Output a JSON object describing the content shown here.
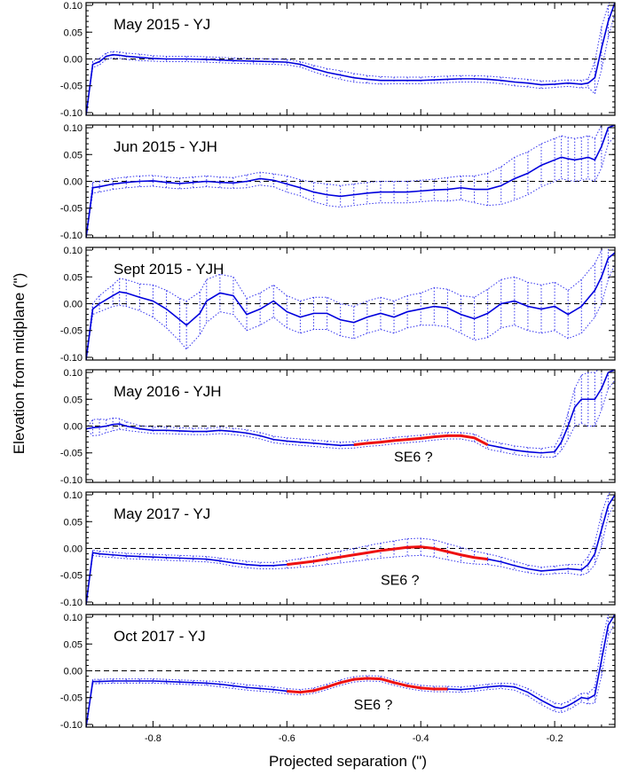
{
  "chart_data": {
    "type": "line",
    "xlabel": "Projected separation (\")",
    "ylabel": "Elevation from midplane (\")",
    "xlim": [
      -0.9,
      -0.11
    ],
    "ylim": [
      -0.105,
      0.105
    ],
    "xticks": [
      -0.8,
      -0.6,
      -0.4,
      -0.2
    ],
    "xtick_labels": [
      "-0.8",
      "-0.6",
      "-0.4",
      "-0.2"
    ],
    "yticks": [
      0.1,
      0.05,
      0.0,
      -0.05,
      -0.1
    ],
    "ytick_labels": [
      "0.10",
      "0.05",
      "0.00",
      "-0.05",
      "-0.10"
    ],
    "zero_line": "dashed",
    "colors": {
      "profile": "#0000dd",
      "highlight": "#ee1111",
      "errorbars": "#3333ee",
      "zero": "#000000"
    },
    "panels": [
      {
        "title": "May 2015 - YJ",
        "x": [
          -0.9,
          -0.89,
          -0.88,
          -0.87,
          -0.86,
          -0.85,
          -0.84,
          -0.82,
          -0.8,
          -0.78,
          -0.75,
          -0.72,
          -0.7,
          -0.68,
          -0.65,
          -0.62,
          -0.6,
          -0.58,
          -0.56,
          -0.54,
          -0.52,
          -0.5,
          -0.48,
          -0.46,
          -0.44,
          -0.42,
          -0.4,
          -0.38,
          -0.36,
          -0.34,
          -0.32,
          -0.3,
          -0.28,
          -0.26,
          -0.24,
          -0.22,
          -0.2,
          -0.18,
          -0.16,
          -0.15,
          -0.14,
          -0.13,
          -0.12,
          -0.11
        ],
        "y": [
          -0.105,
          -0.01,
          -0.005,
          0.005,
          0.008,
          0.007,
          0.005,
          0.003,
          0.001,
          0.0,
          0.0,
          -0.001,
          -0.002,
          -0.003,
          -0.004,
          -0.005,
          -0.006,
          -0.01,
          -0.018,
          -0.025,
          -0.03,
          -0.035,
          -0.038,
          -0.04,
          -0.04,
          -0.04,
          -0.04,
          -0.039,
          -0.038,
          -0.037,
          -0.037,
          -0.038,
          -0.04,
          -0.043,
          -0.045,
          -0.048,
          -0.047,
          -0.045,
          -0.047,
          -0.045,
          -0.035,
          0.02,
          0.07,
          0.105
        ],
        "err": [
          0,
          0.006,
          0.006,
          0.006,
          0.006,
          0.006,
          0.006,
          0.006,
          0.005,
          0.005,
          0.005,
          0.005,
          0.005,
          0.005,
          0.005,
          0.005,
          0.005,
          0.005,
          0.006,
          0.007,
          0.008,
          0.008,
          0.007,
          0.007,
          0.006,
          0.006,
          0.006,
          0.006,
          0.006,
          0.006,
          0.006,
          0.006,
          0.006,
          0.007,
          0.007,
          0.007,
          0.006,
          0.006,
          0.007,
          0.008,
          0.03,
          0.04,
          0.03,
          0.02
        ],
        "highlight_x": [],
        "annotation": ""
      },
      {
        "title": "Jun 2015 - YJH",
        "x": [
          -0.9,
          -0.89,
          -0.88,
          -0.86,
          -0.84,
          -0.82,
          -0.8,
          -0.78,
          -0.76,
          -0.74,
          -0.72,
          -0.7,
          -0.68,
          -0.66,
          -0.64,
          -0.62,
          -0.6,
          -0.58,
          -0.56,
          -0.54,
          -0.52,
          -0.5,
          -0.48,
          -0.46,
          -0.44,
          -0.42,
          -0.4,
          -0.38,
          -0.36,
          -0.34,
          -0.32,
          -0.3,
          -0.28,
          -0.26,
          -0.24,
          -0.22,
          -0.2,
          -0.19,
          -0.18,
          -0.17,
          -0.16,
          -0.15,
          -0.14,
          -0.13,
          -0.12,
          -0.11
        ],
        "y": [
          -0.105,
          -0.012,
          -0.01,
          -0.005,
          -0.002,
          0.0,
          0.001,
          -0.002,
          -0.004,
          -0.002,
          0.0,
          -0.002,
          -0.003,
          0.0,
          0.005,
          0.002,
          -0.005,
          -0.012,
          -0.02,
          -0.025,
          -0.028,
          -0.025,
          -0.022,
          -0.02,
          -0.02,
          -0.02,
          -0.018,
          -0.016,
          -0.015,
          -0.012,
          -0.015,
          -0.015,
          -0.008,
          0.005,
          0.015,
          0.03,
          0.04,
          0.045,
          0.042,
          0.04,
          0.042,
          0.045,
          0.04,
          0.065,
          0.1,
          0.105
        ],
        "err": [
          0,
          0.01,
          0.01,
          0.01,
          0.01,
          0.01,
          0.01,
          0.01,
          0.01,
          0.01,
          0.01,
          0.01,
          0.01,
          0.012,
          0.012,
          0.012,
          0.015,
          0.015,
          0.018,
          0.02,
          0.02,
          0.02,
          0.02,
          0.02,
          0.02,
          0.02,
          0.02,
          0.02,
          0.022,
          0.022,
          0.025,
          0.03,
          0.035,
          0.04,
          0.04,
          0.04,
          0.04,
          0.04,
          0.04,
          0.04,
          0.04,
          0.04,
          0.04,
          0.04,
          0.03,
          0.02
        ],
        "highlight_x": [],
        "annotation": ""
      },
      {
        "title": "Sept 2015 - YJH",
        "x": [
          -0.9,
          -0.89,
          -0.88,
          -0.86,
          -0.85,
          -0.84,
          -0.82,
          -0.8,
          -0.78,
          -0.76,
          -0.75,
          -0.73,
          -0.72,
          -0.7,
          -0.68,
          -0.66,
          -0.64,
          -0.62,
          -0.6,
          -0.58,
          -0.56,
          -0.54,
          -0.52,
          -0.5,
          -0.48,
          -0.46,
          -0.44,
          -0.42,
          -0.4,
          -0.38,
          -0.36,
          -0.34,
          -0.32,
          -0.3,
          -0.28,
          -0.26,
          -0.24,
          -0.22,
          -0.2,
          -0.18,
          -0.16,
          -0.14,
          -0.13,
          -0.12,
          -0.11
        ],
        "y": [
          -0.105,
          -0.01,
          0.0,
          0.015,
          0.022,
          0.02,
          0.012,
          0.005,
          -0.01,
          -0.03,
          -0.04,
          -0.018,
          0.005,
          0.02,
          0.015,
          -0.02,
          -0.01,
          0.005,
          -0.015,
          -0.025,
          -0.018,
          -0.018,
          -0.03,
          -0.035,
          -0.025,
          -0.018,
          -0.025,
          -0.015,
          -0.01,
          -0.005,
          -0.008,
          -0.02,
          -0.028,
          -0.018,
          0.0,
          0.005,
          -0.005,
          -0.01,
          -0.005,
          -0.02,
          -0.005,
          0.025,
          0.05,
          0.085,
          0.095
        ],
        "err": [
          0,
          0.01,
          0.015,
          0.02,
          0.025,
          0.025,
          0.025,
          0.03,
          0.035,
          0.04,
          0.045,
          0.04,
          0.04,
          0.035,
          0.035,
          0.03,
          0.03,
          0.03,
          0.03,
          0.03,
          0.03,
          0.03,
          0.03,
          0.03,
          0.03,
          0.03,
          0.03,
          0.03,
          0.03,
          0.035,
          0.035,
          0.035,
          0.04,
          0.045,
          0.045,
          0.045,
          0.045,
          0.045,
          0.045,
          0.045,
          0.05,
          0.05,
          0.05,
          0.04,
          0.02
        ],
        "highlight_x": [],
        "annotation": ""
      },
      {
        "title": "May 2016 - YJH",
        "x": [
          -0.9,
          -0.89,
          -0.88,
          -0.87,
          -0.86,
          -0.85,
          -0.84,
          -0.82,
          -0.8,
          -0.78,
          -0.76,
          -0.74,
          -0.72,
          -0.7,
          -0.68,
          -0.66,
          -0.64,
          -0.62,
          -0.6,
          -0.58,
          -0.56,
          -0.54,
          -0.52,
          -0.5,
          -0.48,
          -0.46,
          -0.44,
          -0.42,
          -0.4,
          -0.38,
          -0.36,
          -0.34,
          -0.32,
          -0.3,
          -0.28,
          -0.26,
          -0.24,
          -0.22,
          -0.2,
          -0.19,
          -0.18,
          -0.17,
          -0.16,
          -0.15,
          -0.14,
          -0.13,
          -0.12,
          -0.11
        ],
        "y": [
          -0.005,
          -0.003,
          -0.002,
          0.0,
          0.003,
          0.004,
          0.0,
          -0.005,
          -0.008,
          -0.008,
          -0.009,
          -0.01,
          -0.01,
          -0.008,
          -0.01,
          -0.013,
          -0.018,
          -0.025,
          -0.028,
          -0.03,
          -0.032,
          -0.034,
          -0.036,
          -0.035,
          -0.032,
          -0.03,
          -0.027,
          -0.025,
          -0.023,
          -0.02,
          -0.018,
          -0.018,
          -0.022,
          -0.035,
          -0.04,
          -0.045,
          -0.048,
          -0.05,
          -0.048,
          -0.03,
          0.0,
          0.035,
          0.05,
          0.05,
          0.05,
          0.07,
          0.1,
          0.105
        ],
        "err": [
          0,
          0.015,
          0.015,
          0.012,
          0.012,
          0.01,
          0.008,
          0.006,
          0.006,
          0.006,
          0.006,
          0.006,
          0.006,
          0.006,
          0.006,
          0.006,
          0.006,
          0.006,
          0.006,
          0.006,
          0.006,
          0.006,
          0.006,
          0.006,
          0.006,
          0.006,
          0.006,
          0.006,
          0.006,
          0.006,
          0.006,
          0.006,
          0.007,
          0.008,
          0.008,
          0.008,
          0.008,
          0.008,
          0.01,
          0.015,
          0.025,
          0.035,
          0.045,
          0.05,
          0.05,
          0.04,
          0.03,
          0.02
        ],
        "highlight_x": [
          -0.5,
          -0.3
        ],
        "annotation": "SE6 ?",
        "annotation_x": -0.44,
        "annotation_y": -0.066
      },
      {
        "title": "May 2017 - YJ",
        "x": [
          -0.9,
          -0.89,
          -0.88,
          -0.86,
          -0.84,
          -0.82,
          -0.8,
          -0.78,
          -0.76,
          -0.74,
          -0.72,
          -0.7,
          -0.68,
          -0.66,
          -0.64,
          -0.62,
          -0.6,
          -0.58,
          -0.56,
          -0.54,
          -0.52,
          -0.5,
          -0.48,
          -0.46,
          -0.44,
          -0.42,
          -0.4,
          -0.38,
          -0.36,
          -0.34,
          -0.32,
          -0.3,
          -0.28,
          -0.26,
          -0.24,
          -0.22,
          -0.2,
          -0.18,
          -0.16,
          -0.15,
          -0.14,
          -0.13,
          -0.12,
          -0.11
        ],
        "y": [
          -0.105,
          -0.008,
          -0.01,
          -0.012,
          -0.014,
          -0.015,
          -0.016,
          -0.017,
          -0.018,
          -0.019,
          -0.02,
          -0.023,
          -0.027,
          -0.03,
          -0.032,
          -0.032,
          -0.03,
          -0.027,
          -0.024,
          -0.02,
          -0.016,
          -0.012,
          -0.008,
          -0.004,
          -0.001,
          0.002,
          0.003,
          0.0,
          -0.006,
          -0.012,
          -0.017,
          -0.02,
          -0.025,
          -0.032,
          -0.038,
          -0.042,
          -0.04,
          -0.038,
          -0.04,
          -0.03,
          -0.01,
          0.035,
          0.08,
          0.1
        ],
        "err": [
          0,
          0.005,
          0.005,
          0.005,
          0.005,
          0.005,
          0.005,
          0.005,
          0.005,
          0.005,
          0.005,
          0.005,
          0.006,
          0.006,
          0.006,
          0.006,
          0.007,
          0.008,
          0.009,
          0.01,
          0.011,
          0.012,
          0.013,
          0.014,
          0.015,
          0.016,
          0.016,
          0.016,
          0.015,
          0.014,
          0.012,
          0.01,
          0.009,
          0.008,
          0.007,
          0.007,
          0.007,
          0.008,
          0.01,
          0.015,
          0.02,
          0.03,
          0.02,
          0.015
        ],
        "highlight_x": [
          -0.6,
          -0.3
        ],
        "annotation": "SE6 ?",
        "annotation_x": -0.46,
        "annotation_y": -0.068
      },
      {
        "title": "Oct 2017 - YJ",
        "x": [
          -0.9,
          -0.89,
          -0.88,
          -0.86,
          -0.84,
          -0.82,
          -0.8,
          -0.78,
          -0.76,
          -0.74,
          -0.72,
          -0.7,
          -0.68,
          -0.66,
          -0.64,
          -0.62,
          -0.6,
          -0.58,
          -0.56,
          -0.54,
          -0.52,
          -0.5,
          -0.48,
          -0.46,
          -0.44,
          -0.42,
          -0.4,
          -0.38,
          -0.36,
          -0.34,
          -0.32,
          -0.3,
          -0.28,
          -0.26,
          -0.24,
          -0.22,
          -0.2,
          -0.19,
          -0.18,
          -0.17,
          -0.16,
          -0.15,
          -0.14,
          -0.13,
          -0.12,
          -0.11
        ],
        "y": [
          -0.105,
          -0.02,
          -0.02,
          -0.019,
          -0.019,
          -0.019,
          -0.019,
          -0.02,
          -0.021,
          -0.022,
          -0.023,
          -0.025,
          -0.028,
          -0.031,
          -0.033,
          -0.035,
          -0.038,
          -0.04,
          -0.037,
          -0.03,
          -0.022,
          -0.016,
          -0.014,
          -0.015,
          -0.022,
          -0.028,
          -0.032,
          -0.034,
          -0.034,
          -0.035,
          -0.033,
          -0.03,
          -0.028,
          -0.03,
          -0.04,
          -0.055,
          -0.068,
          -0.07,
          -0.065,
          -0.058,
          -0.05,
          -0.052,
          -0.045,
          0.02,
          0.085,
          0.105
        ],
        "err": [
          0,
          0.004,
          0.004,
          0.004,
          0.004,
          0.004,
          0.004,
          0.004,
          0.004,
          0.004,
          0.004,
          0.005,
          0.005,
          0.005,
          0.005,
          0.005,
          0.005,
          0.005,
          0.005,
          0.005,
          0.005,
          0.005,
          0.005,
          0.005,
          0.005,
          0.005,
          0.005,
          0.005,
          0.005,
          0.005,
          0.005,
          0.005,
          0.005,
          0.006,
          0.007,
          0.008,
          0.008,
          0.008,
          0.008,
          0.008,
          0.008,
          0.01,
          0.015,
          0.03,
          0.02,
          0.015
        ],
        "highlight_x": [
          -0.6,
          -0.35
        ],
        "annotation": "SE6 ?",
        "annotation_x": -0.5,
        "annotation_y": -0.072
      }
    ]
  }
}
